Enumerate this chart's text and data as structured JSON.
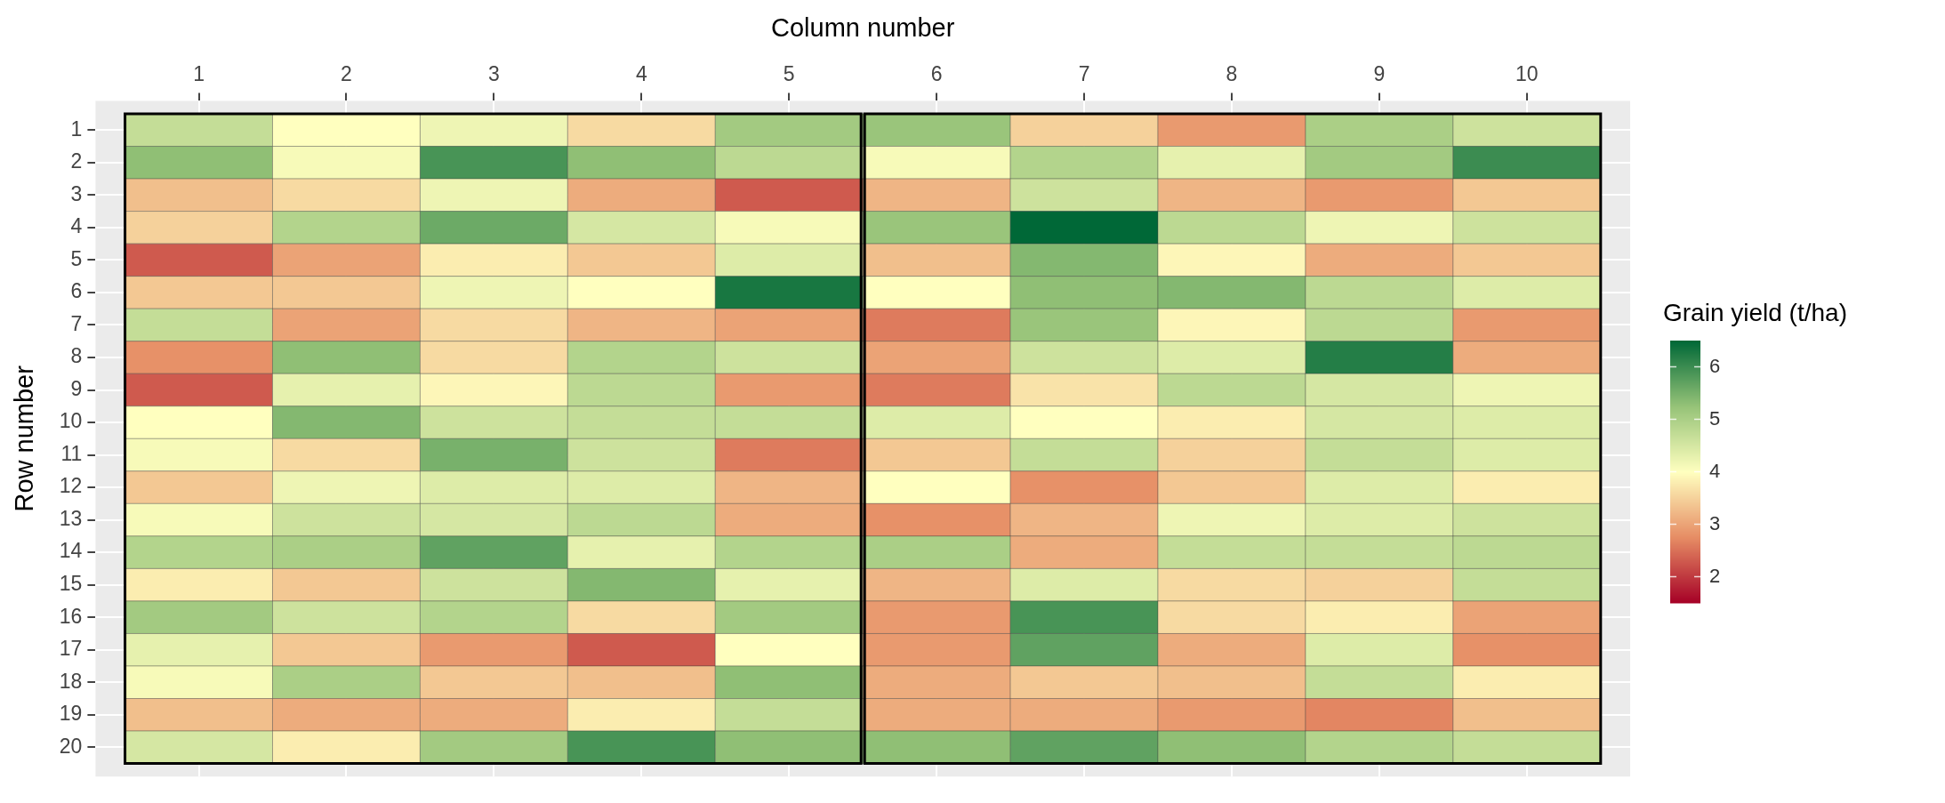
{
  "chart_data": {
    "type": "heatmap",
    "xlabel": "Column number",
    "ylabel": "Row number",
    "clabel": "Grain yield (t/ha)",
    "categories": [
      "1",
      "2",
      "3",
      "4",
      "5",
      "6",
      "7",
      "8",
      "9",
      "10"
    ],
    "y_categories": [
      "1",
      "2",
      "3",
      "4",
      "5",
      "6",
      "7",
      "8",
      "9",
      "10",
      "11",
      "12",
      "13",
      "14",
      "15",
      "16",
      "17",
      "18",
      "19",
      "20"
    ],
    "cells": [
      [
        4.7,
        4.0,
        4.2,
        3.6,
        5.1,
        5.2,
        3.5,
        2.9,
        5.0,
        4.6
      ],
      [
        5.3,
        4.1,
        5.9,
        5.3,
        4.8,
        4.1,
        4.9,
        4.3,
        5.1,
        6.0
      ],
      [
        3.3,
        3.6,
        4.2,
        3.1,
        2.3,
        3.2,
        4.6,
        3.2,
        2.9,
        3.4
      ],
      [
        3.5,
        4.9,
        5.6,
        4.5,
        4.1,
        5.2,
        6.5,
        4.8,
        4.2,
        4.6
      ],
      [
        2.3,
        3.0,
        3.8,
        3.4,
        4.4,
        3.3,
        5.4,
        3.9,
        3.1,
        3.4
      ],
      [
        3.4,
        3.4,
        4.2,
        4.0,
        6.3,
        4.0,
        5.3,
        5.4,
        4.8,
        4.4
      ],
      [
        4.7,
        3.0,
        3.6,
        3.2,
        3.0,
        2.6,
        5.2,
        3.9,
        4.8,
        2.9
      ],
      [
        2.8,
        5.3,
        3.6,
        4.9,
        4.6,
        3.0,
        4.6,
        4.4,
        6.2,
        3.1
      ],
      [
        2.3,
        4.3,
        3.9,
        4.8,
        2.9,
        2.6,
        3.7,
        4.8,
        4.5,
        4.2
      ],
      [
        4.0,
        5.4,
        4.6,
        4.7,
        4.7,
        4.4,
        4.0,
        3.8,
        4.5,
        4.4
      ],
      [
        4.1,
        3.6,
        5.5,
        4.6,
        2.6,
        3.4,
        4.7,
        3.5,
        4.7,
        4.4
      ],
      [
        3.4,
        4.2,
        4.4,
        4.4,
        3.2,
        4.0,
        2.8,
        3.4,
        4.4,
        3.8
      ],
      [
        4.1,
        4.6,
        4.5,
        4.8,
        3.1,
        2.8,
        3.2,
        4.2,
        4.4,
        4.6
      ],
      [
        4.9,
        5.0,
        5.7,
        4.3,
        4.9,
        5.0,
        3.1,
        4.7,
        4.7,
        4.8
      ],
      [
        3.8,
        3.4,
        4.6,
        5.4,
        4.3,
        3.2,
        4.4,
        3.6,
        3.5,
        4.7
      ],
      [
        5.1,
        4.6,
        4.9,
        3.6,
        5.1,
        2.9,
        5.9,
        3.6,
        3.8,
        3.0
      ],
      [
        4.3,
        3.4,
        2.9,
        2.3,
        4.0,
        2.9,
        5.7,
        3.1,
        4.4,
        2.8
      ],
      [
        4.1,
        5.0,
        3.4,
        3.3,
        5.3,
        3.1,
        3.4,
        3.3,
        4.7,
        3.8
      ],
      [
        3.3,
        3.1,
        3.1,
        3.8,
        4.7,
        3.1,
        3.1,
        2.9,
        2.7,
        3.3
      ],
      [
        4.5,
        3.8,
        5.1,
        5.9,
        5.3,
        5.3,
        5.7,
        5.3,
        4.9,
        4.7
      ]
    ],
    "clim": [
      1.5,
      6.5
    ],
    "cticks": [
      2,
      3,
      4,
      5,
      6
    ],
    "grid": true
  }
}
